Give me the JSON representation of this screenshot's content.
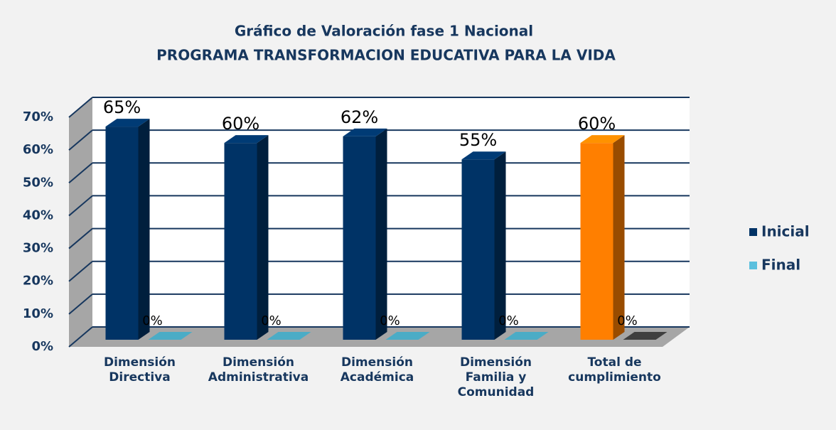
{
  "chart_data": {
    "type": "bar3d",
    "title": "Gráfico de Valoración  fase 1  Nacional",
    "subtitle": "PROGRAMA TRANSFORMACION EDUCATIVA PARA LA VIDA",
    "categories": [
      "Dimensión Directiva",
      "Dimensión Administrativa",
      "Dimensión Académica",
      "Dimensión Familia y Comunidad",
      "Total de cumplimiento"
    ],
    "series": [
      {
        "name": "Inicial",
        "color": "#003366",
        "colors": [
          "#003366",
          "#003366",
          "#003366",
          "#003366",
          "#ff7f00"
        ],
        "values": [
          65,
          60,
          62,
          55,
          60
        ],
        "value_labels": [
          "65%",
          "60%",
          "62%",
          "55%",
          "60%"
        ]
      },
      {
        "name": "Final",
        "color": "#5bc0de",
        "colors": [
          "#4bacc6",
          "#4bacc6",
          "#4bacc6",
          "#4bacc6",
          "#3f3f3f"
        ],
        "values": [
          0,
          0,
          0,
          0,
          0
        ],
        "value_labels": [
          "0%",
          "0%",
          "0%",
          "0%",
          "0%"
        ]
      }
    ],
    "ylim": [
      0,
      70
    ],
    "yticks": [
      {
        "value": 0,
        "label": "0%"
      },
      {
        "value": 10,
        "label": "10%"
      },
      {
        "value": 20,
        "label": "20%"
      },
      {
        "value": 30,
        "label": "30%"
      },
      {
        "value": 40,
        "label": "40%"
      },
      {
        "value": 50,
        "label": "50%"
      },
      {
        "value": 60,
        "label": "60%"
      },
      {
        "value": 70,
        "label": "70%"
      }
    ],
    "grid": true,
    "legend": "right"
  }
}
